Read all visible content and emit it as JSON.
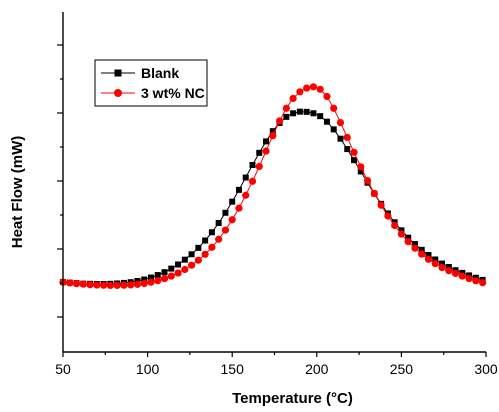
{
  "chart_data": {
    "type": "scatter",
    "title": "",
    "xlabel": "Temperature (°C)",
    "ylabel": "Heat Flow (mW)",
    "xlim": [
      50,
      300
    ],
    "x_ticks": [
      50,
      100,
      150,
      200,
      250,
      300
    ],
    "x_tick_labels": [
      "50",
      "100",
      "150",
      "200",
      "250",
      "300"
    ],
    "y_tick_labels_shown": false,
    "grid": false,
    "legend_position": "top-left",
    "series": [
      {
        "name": "Blank",
        "color": "#000000",
        "marker": "square",
        "line": true,
        "x": [
          50,
          54,
          58,
          62,
          66,
          70,
          74,
          78,
          82,
          86,
          90,
          94,
          98,
          102,
          106,
          110,
          114,
          118,
          122,
          126,
          130,
          134,
          138,
          142,
          146,
          150,
          154,
          158,
          162,
          166,
          170,
          174,
          178,
          182,
          186,
          190,
          194,
          198,
          202,
          206,
          210,
          214,
          218,
          222,
          226,
          230,
          234,
          238,
          242,
          246,
          250,
          254,
          258,
          262,
          266,
          270,
          274,
          278,
          282,
          286,
          290,
          294,
          298
        ],
        "y": [
          0.041,
          0.038,
          0.035,
          0.032,
          0.031,
          0.03,
          0.03,
          0.031,
          0.033,
          0.036,
          0.04,
          0.047,
          0.055,
          0.066,
          0.08,
          0.096,
          0.116,
          0.139,
          0.166,
          0.196,
          0.232,
          0.273,
          0.319,
          0.371,
          0.428,
          0.49,
          0.556,
          0.625,
          0.695,
          0.763,
          0.827,
          0.884,
          0.93,
          0.964,
          0.984,
          0.993,
          0.992,
          0.984,
          0.968,
          0.937,
          0.894,
          0.842,
          0.784,
          0.722,
          0.659,
          0.596,
          0.535,
          0.478,
          0.424,
          0.375,
          0.33,
          0.289,
          0.253,
          0.221,
          0.192,
          0.167,
          0.144,
          0.125,
          0.107,
          0.092,
          0.078,
          0.065,
          0.053
        ]
      },
      {
        "name": "3 wt% NC",
        "color": "#ff0000",
        "marker": "circle",
        "line": true,
        "x": [
          50,
          54,
          58,
          62,
          66,
          70,
          74,
          78,
          82,
          86,
          90,
          94,
          98,
          102,
          106,
          110,
          114,
          118,
          122,
          126,
          130,
          134,
          138,
          142,
          146,
          150,
          154,
          158,
          162,
          166,
          170,
          174,
          178,
          182,
          186,
          190,
          194,
          198,
          202,
          206,
          210,
          214,
          218,
          222,
          226,
          230,
          234,
          238,
          242,
          246,
          250,
          254,
          258,
          262,
          266,
          270,
          274,
          278,
          282,
          286,
          290,
          294,
          298
        ],
        "y": [
          0.04,
          0.036,
          0.032,
          0.029,
          0.026,
          0.024,
          0.023,
          0.022,
          0.022,
          0.023,
          0.025,
          0.028,
          0.033,
          0.04,
          0.049,
          0.06,
          0.074,
          0.091,
          0.111,
          0.135,
          0.163,
          0.196,
          0.235,
          0.28,
          0.331,
          0.389,
          0.454,
          0.526,
          0.604,
          0.687,
          0.773,
          0.859,
          0.941,
          1.012,
          1.067,
          1.104,
          1.125,
          1.132,
          1.118,
          1.078,
          1.012,
          0.932,
          0.849,
          0.766,
          0.685,
          0.608,
          0.536,
          0.47,
          0.41,
          0.357,
          0.309,
          0.267,
          0.23,
          0.197,
          0.168,
          0.144,
          0.122,
          0.104,
          0.089,
          0.074,
          0.06,
          0.048,
          0.037
        ]
      }
    ]
  }
}
